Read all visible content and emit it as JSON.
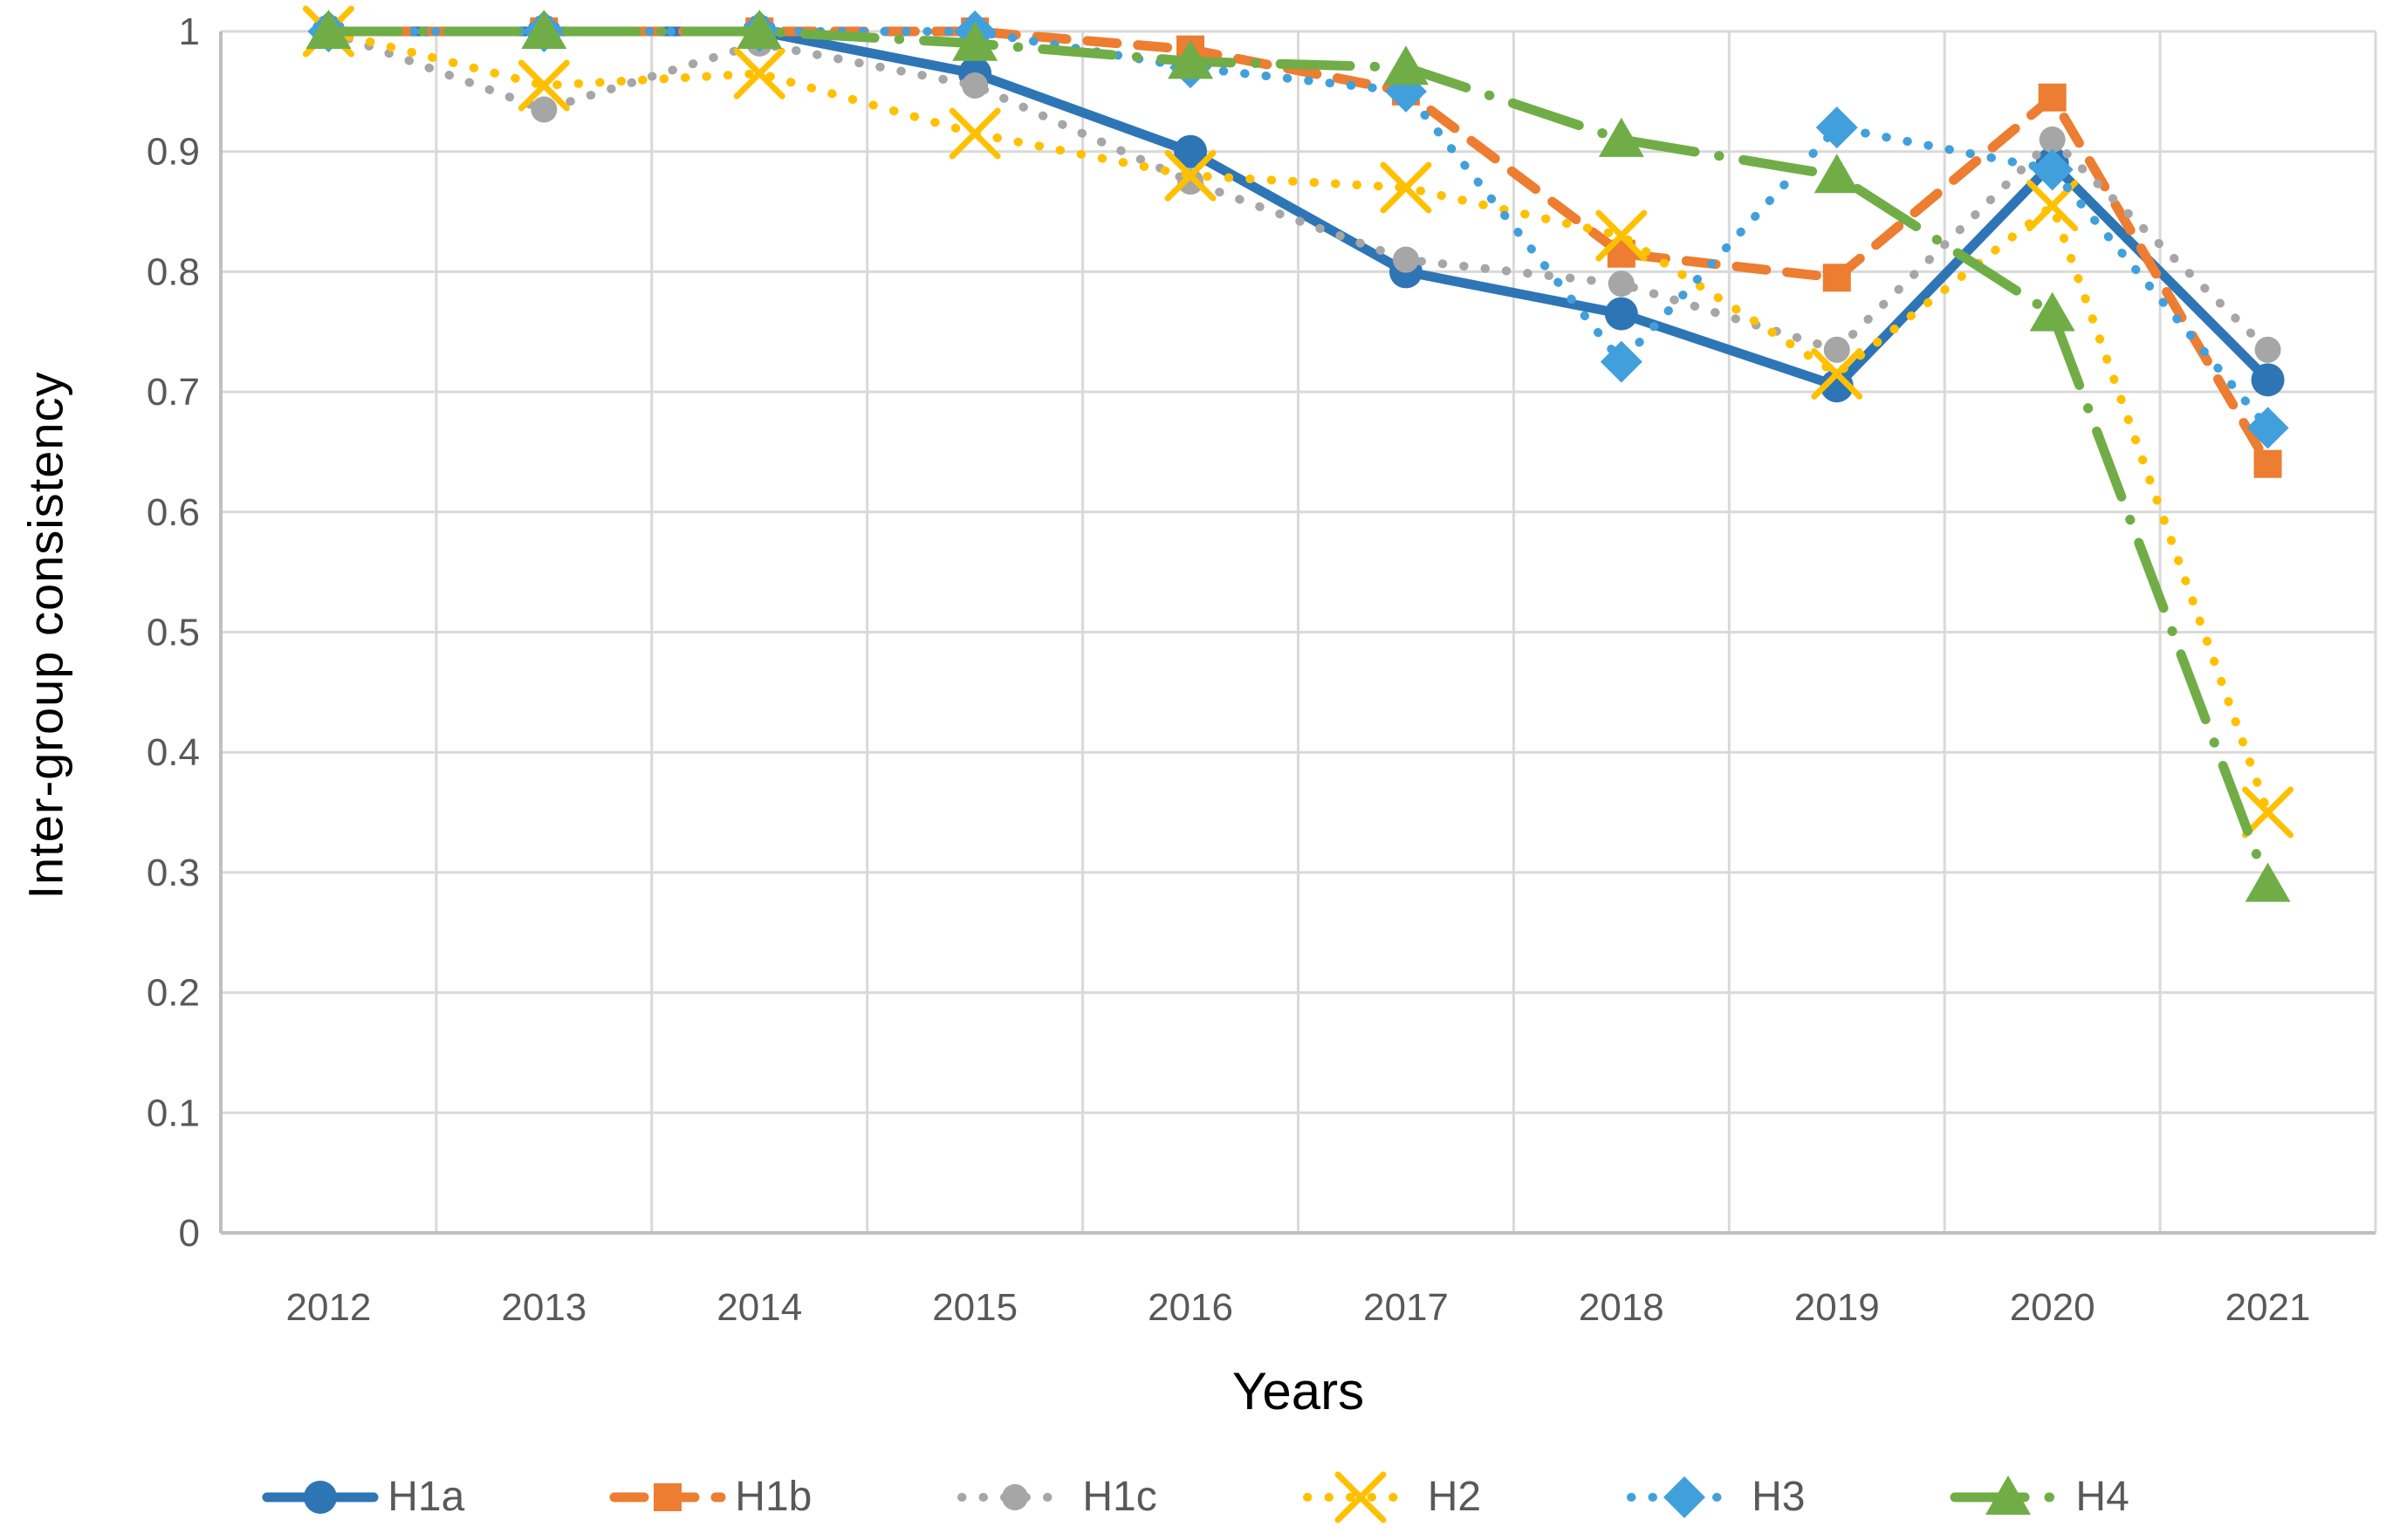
{
  "chart_data": {
    "type": "line",
    "title": "",
    "xlabel": "Years",
    "ylabel": "Inter-group consistency",
    "x_categories": [
      "2012",
      "2013",
      "2014",
      "2015",
      "2016",
      "2017",
      "2018",
      "2019",
      "2020",
      "2021"
    ],
    "ylim": [
      0,
      1
    ],
    "ytick_labels": [
      "0",
      "0.1",
      "0.2",
      "0.3",
      "0.4",
      "0.5",
      "0.6",
      "0.7",
      "0.8",
      "0.9",
      "1"
    ],
    "grid": true,
    "legend_position": "bottom",
    "grid_color": "#D9D9D9",
    "axis_color": "#BFBFBF",
    "tick_label_color": "#595959",
    "title_color": "#000000",
    "series": [
      {
        "name": "H1a",
        "color": "#2E75B6",
        "line_style": "solid",
        "marker": "circle",
        "values": [
          1.0,
          1.0,
          1.0,
          0.965,
          0.9,
          0.8,
          0.765,
          0.705,
          0.89,
          0.71
        ]
      },
      {
        "name": "H1b",
        "color": "#ED7D31",
        "line_style": "dashed",
        "marker": "square",
        "values": [
          1.0,
          1.0,
          1.0,
          1.0,
          0.985,
          0.95,
          0.815,
          0.795,
          0.945,
          0.64
        ]
      },
      {
        "name": "H1c",
        "color": "#A6A6A6",
        "line_style": "dotted",
        "marker": "dot",
        "values": [
          1.0,
          0.935,
          0.99,
          0.955,
          0.875,
          0.81,
          0.79,
          0.735,
          0.91,
          0.735
        ]
      },
      {
        "name": "H2",
        "color": "#FFC000",
        "line_style": "dotted",
        "marker": "x",
        "values": [
          1.0,
          0.955,
          0.965,
          0.915,
          0.88,
          0.87,
          0.83,
          0.715,
          0.855,
          0.35
        ]
      },
      {
        "name": "H3",
        "color": "#41A0DC",
        "line_style": "dotted",
        "marker": "diamond",
        "values": [
          1.0,
          1.0,
          1.0,
          1.0,
          0.97,
          0.95,
          0.725,
          0.92,
          0.885,
          0.67
        ]
      },
      {
        "name": "H4",
        "color": "#70AD47",
        "line_style": "dash-dot",
        "marker": "triangle",
        "values": [
          1.0,
          1.0,
          1.0,
          0.99,
          0.975,
          0.97,
          0.91,
          0.88,
          0.765,
          0.29
        ]
      }
    ]
  }
}
